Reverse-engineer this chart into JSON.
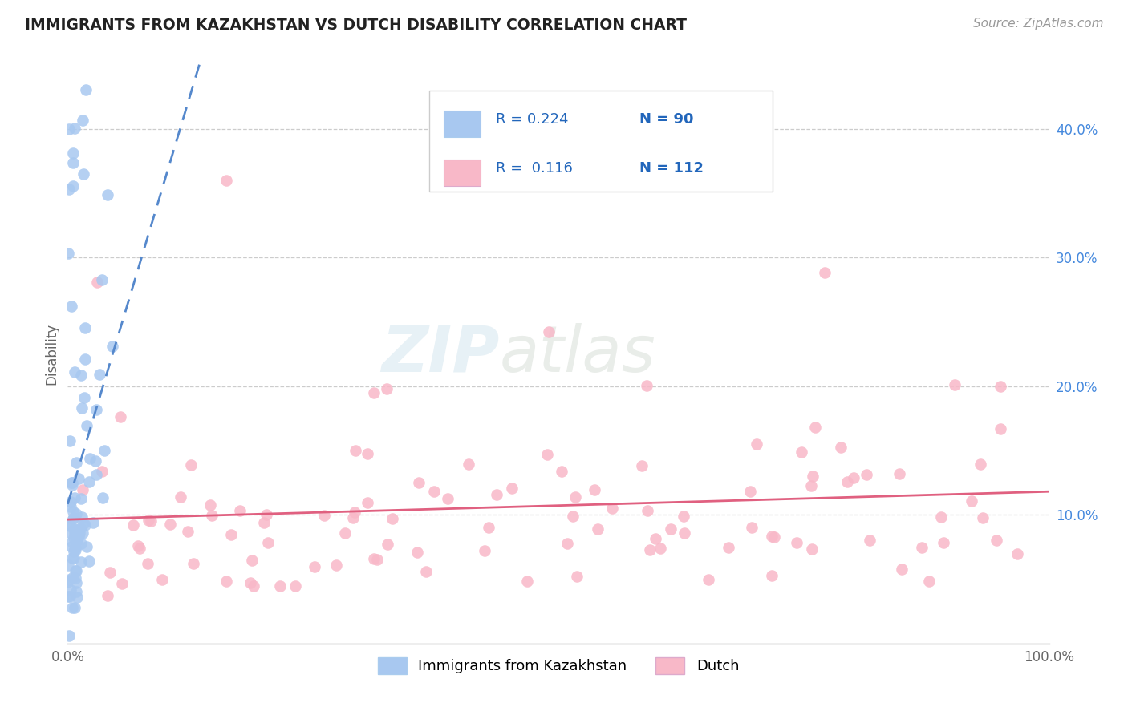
{
  "title": "IMMIGRANTS FROM KAZAKHSTAN VS DUTCH DISABILITY CORRELATION CHART",
  "source_text": "Source: ZipAtlas.com",
  "ylabel": "Disability",
  "xlim": [
    0.0,
    1.0
  ],
  "ylim": [
    0.0,
    0.45
  ],
  "x_ticks": [
    0.0,
    0.1,
    0.2,
    0.3,
    0.4,
    0.5,
    0.6,
    0.7,
    0.8,
    0.9,
    1.0
  ],
  "y_ticks": [
    0.0,
    0.1,
    0.2,
    0.3,
    0.4
  ],
  "blue_scatter_color": "#a8c8f0",
  "blue_line_color": "#5588cc",
  "pink_scatter_color": "#f8b8c8",
  "pink_line_color": "#e06080",
  "R_blue": 0.224,
  "N_blue": 90,
  "R_pink": 0.116,
  "N_pink": 112,
  "legend_label_blue": "Immigrants from Kazakhstan",
  "legend_label_pink": "Dutch",
  "watermark_zip": "ZIP",
  "watermark_atlas": "atlas",
  "background_color": "#ffffff",
  "grid_color": "#cccccc",
  "title_color": "#222222",
  "axis_color": "#aaaaaa",
  "y_tick_color": "#4488dd",
  "x_tick_color": "#666666"
}
